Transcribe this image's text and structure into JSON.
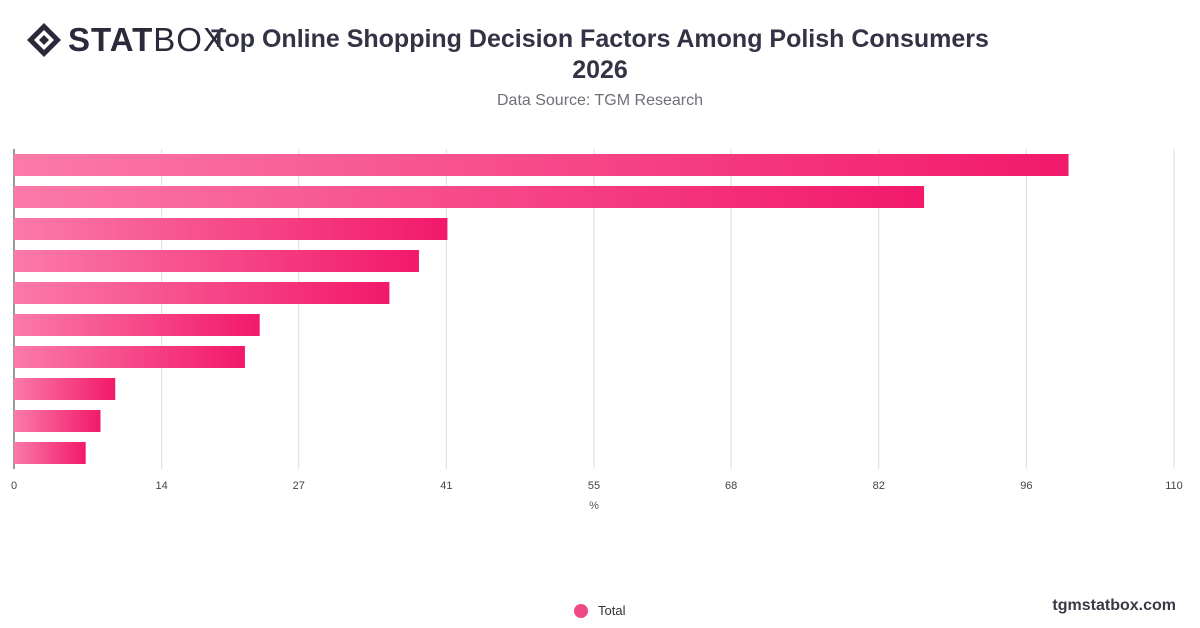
{
  "header": {
    "logo_bold": "STAT",
    "logo_light": "BOX",
    "title": "Top Online Shopping Decision Factors Among Polish Consumers 2026",
    "subtitle": "Data Source: TGM Research"
  },
  "legend": {
    "label": "Total"
  },
  "watermark": "tgmstatbox.com",
  "colors": {
    "bar_start": "#fb7aa8",
    "bar_end": "#f2196a",
    "legend": "#ef4a85",
    "grid": "#dddddd"
  },
  "chart_data": {
    "type": "bar",
    "orientation": "horizontal",
    "xlabel": "%",
    "xlim": [
      0,
      110
    ],
    "xticks": [
      0,
      14,
      27,
      41,
      55,
      68,
      82,
      96,
      110
    ],
    "grid": true,
    "legend_position": "bottom-center",
    "series": [
      {
        "name": "Total",
        "values": [
          100,
          86.3,
          41.1,
          38.4,
          35.6,
          23.3,
          21.9,
          9.6,
          8.2,
          6.8
        ]
      }
    ]
  }
}
